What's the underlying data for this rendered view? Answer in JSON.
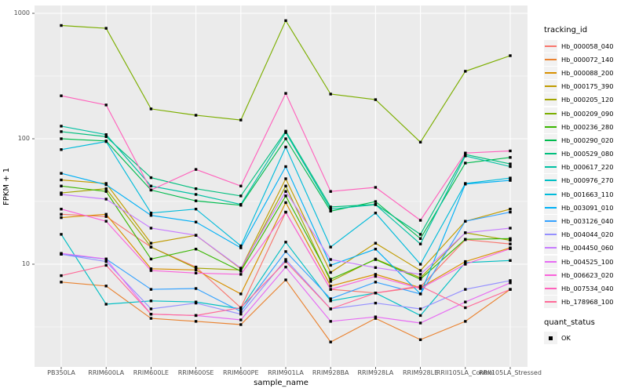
{
  "figure": {
    "background": "#FFFFFF",
    "panel_background": "#EBEBEB",
    "gridline_color": "#FFFFFF",
    "tick_color": "#333333",
    "tick_label_color": "#4D4D4D"
  },
  "axes": {
    "x_title": "sample_name",
    "y_title": "FPKM + 1",
    "y_tick_labels": [
      "1000",
      "100",
      "10"
    ]
  },
  "legend": {
    "tracking_title": "tracking_id",
    "quant_title": "quant_status",
    "quant_items": [
      {
        "label": "OK",
        "marker": "black-square-icon"
      }
    ]
  },
  "chart_data": {
    "type": "line",
    "title": "",
    "xlabel": "sample_name",
    "ylabel": "FPKM + 1",
    "grid": true,
    "legend_position": "right",
    "point_marker": {
      "shape": "square",
      "color": "#000000",
      "size": 3.4
    },
    "x_axis": {
      "categories": [
        "PB350LA",
        "RRIM600LA",
        "RRIM600LE",
        "RRIM600SE",
        "RRIM600PE",
        "RRIM901LA",
        "RRIM928BA",
        "RRIM928LA",
        "RRIM928LE",
        "RRII105LA_Control",
        "RRII105LA_Stressed"
      ]
    },
    "y_axis": {
      "scale": "log10",
      "ticks": [
        1000,
        100,
        10
      ],
      "minor_gridlines": [
        316.23,
        31.62,
        3.162
      ],
      "visible_range": [
        1.6,
        1200
      ]
    },
    "quant_status": "OK",
    "series": [
      {
        "name": "Hb_000058_040",
        "color": "#F8766D",
        "values": [
          25,
          24,
          13.7,
          9.5,
          4.5,
          26,
          6.3,
          5.9,
          6.6,
          15.7,
          14.5
        ]
      },
      {
        "name": "Hb_000072_140",
        "color": "#EA8331",
        "values": [
          7.2,
          6.7,
          3.7,
          3.5,
          3.3,
          7.5,
          2.4,
          3.7,
          2.5,
          3.5,
          6.3
        ]
      },
      {
        "name": "Hb_000088_200",
        "color": "#D89000",
        "values": [
          23.5,
          25,
          9.2,
          9.0,
          5.8,
          31,
          6.7,
          8.3,
          6.5,
          10.5,
          13.5
        ]
      },
      {
        "name": "Hb_000175_390",
        "color": "#C09B00",
        "values": [
          47,
          44,
          14.7,
          17,
          9.2,
          48,
          8.6,
          14.7,
          8.9,
          22,
          27.5
        ]
      },
      {
        "name": "Hb_000205_120",
        "color": "#A3A500",
        "values": [
          37,
          40,
          13.7,
          9.3,
          9.0,
          42,
          7.3,
          11,
          7.8,
          17.8,
          15.5
        ]
      },
      {
        "name": "Hb_000209_090",
        "color": "#7CAE00",
        "values": [
          800,
          760,
          173,
          154,
          141,
          875,
          227,
          205,
          94,
          345,
          460
        ]
      },
      {
        "name": "Hb_000236_280",
        "color": "#39B600",
        "values": [
          42,
          38,
          11,
          13.2,
          8.8,
          35,
          7.6,
          10.9,
          7.6,
          15.8,
          16
        ]
      },
      {
        "name": "Hb_000290_020",
        "color": "#00BB4E",
        "values": [
          100,
          96,
          39,
          32,
          29.5,
          100,
          26.5,
          31.6,
          16,
          64,
          71
        ]
      },
      {
        "name": "Hb_000529_080",
        "color": "#00BF7D",
        "values": [
          114,
          104,
          49,
          40,
          35,
          115,
          28.6,
          30,
          17.3,
          75,
          63
        ]
      },
      {
        "name": "Hb_000617_220",
        "color": "#00C1A3",
        "values": [
          126,
          108,
          42,
          36,
          30,
          112,
          27.5,
          29.8,
          14.5,
          73,
          60
        ]
      },
      {
        "name": "Hb_000976_270",
        "color": "#00BFC4",
        "values": [
          17.3,
          4.8,
          5.1,
          5.0,
          4.4,
          15,
          5.1,
          5.9,
          3.9,
          10.3,
          10.7
        ]
      },
      {
        "name": "Hb_001663_110",
        "color": "#00BBDA",
        "values": [
          82,
          95,
          25.6,
          27.5,
          14,
          86,
          13.7,
          25.6,
          10,
          44,
          48.6
        ]
      },
      {
        "name": "Hb_003091_010",
        "color": "#00B0F6",
        "values": [
          53,
          43,
          24.5,
          21.7,
          13.5,
          60,
          9.8,
          13.2,
          5.8,
          43.5,
          46.6
        ]
      },
      {
        "name": "Hb_003126_040",
        "color": "#35A2FF",
        "values": [
          12,
          11,
          6.3,
          6.4,
          4.2,
          12.6,
          5.3,
          7.2,
          5.8,
          22,
          26
        ]
      },
      {
        "name": "Hb_004044_020",
        "color": "#9590FF",
        "values": [
          12,
          10.5,
          4.4,
          4.9,
          4.0,
          10.9,
          4.4,
          4.9,
          4.4,
          6.3,
          7.4
        ]
      },
      {
        "name": "Hb_004450_060",
        "color": "#C77CFF",
        "values": [
          36,
          33,
          19.4,
          17,
          9.3,
          38,
          10.9,
          9.4,
          8.3,
          17.8,
          19.4
        ]
      },
      {
        "name": "Hb_004525_100",
        "color": "#E76BF3",
        "values": [
          12.2,
          11,
          4.0,
          3.9,
          3.6,
          9.5,
          3.5,
          3.8,
          3.4,
          5.0,
          7.1
        ]
      },
      {
        "name": "Hb_006623_020",
        "color": "#FA62DB",
        "values": [
          27.5,
          22,
          8.9,
          8.5,
          8.3,
          26,
          6.3,
          8.0,
          6.4,
          10.0,
          13.3
        ]
      },
      {
        "name": "Hb_007534_040",
        "color": "#FF62BC",
        "values": [
          220,
          186,
          39,
          57,
          42,
          230,
          38,
          41,
          22.4,
          77,
          80
        ]
      },
      {
        "name": "Hb_178968_100",
        "color": "#FF6A98",
        "values": [
          8.1,
          9.8,
          4.0,
          3.9,
          4.5,
          10.5,
          4.4,
          5.9,
          6.7,
          4.5,
          6.3
        ]
      }
    ]
  }
}
